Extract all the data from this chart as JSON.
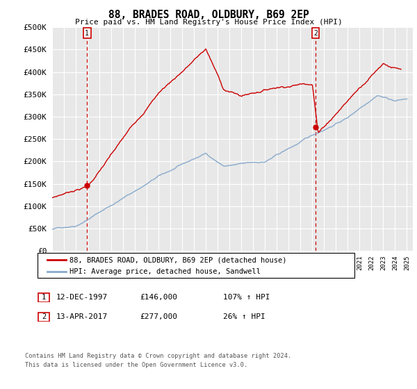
{
  "title": "88, BRADES ROAD, OLDBURY, B69 2EP",
  "subtitle": "Price paid vs. HM Land Registry's House Price Index (HPI)",
  "legend_line1": "88, BRADES ROAD, OLDBURY, B69 2EP (detached house)",
  "legend_line2": "HPI: Average price, detached house, Sandwell",
  "point1_label": "1",
  "point1_date": "12-DEC-1997",
  "point1_price": "£146,000",
  "point1_hpi": "107% ↑ HPI",
  "point1_year": 1997.95,
  "point1_value": 146000,
  "point2_label": "2",
  "point2_date": "13-APR-2017",
  "point2_price": "£277,000",
  "point2_hpi": "26% ↑ HPI",
  "point2_year": 2017.28,
  "point2_value": 277000,
  "footnote1": "Contains HM Land Registry data © Crown copyright and database right 2024.",
  "footnote2": "This data is licensed under the Open Government Licence v3.0.",
  "property_color": "#cc0000",
  "hpi_color": "#88aacc",
  "dashed_color": "#cc0000",
  "background_color": "#ffffff",
  "plot_bg_color": "#e8e8e8",
  "ylim": [
    0,
    500000
  ],
  "xlim_start": 1995.0,
  "xlim_end": 2025.5
}
